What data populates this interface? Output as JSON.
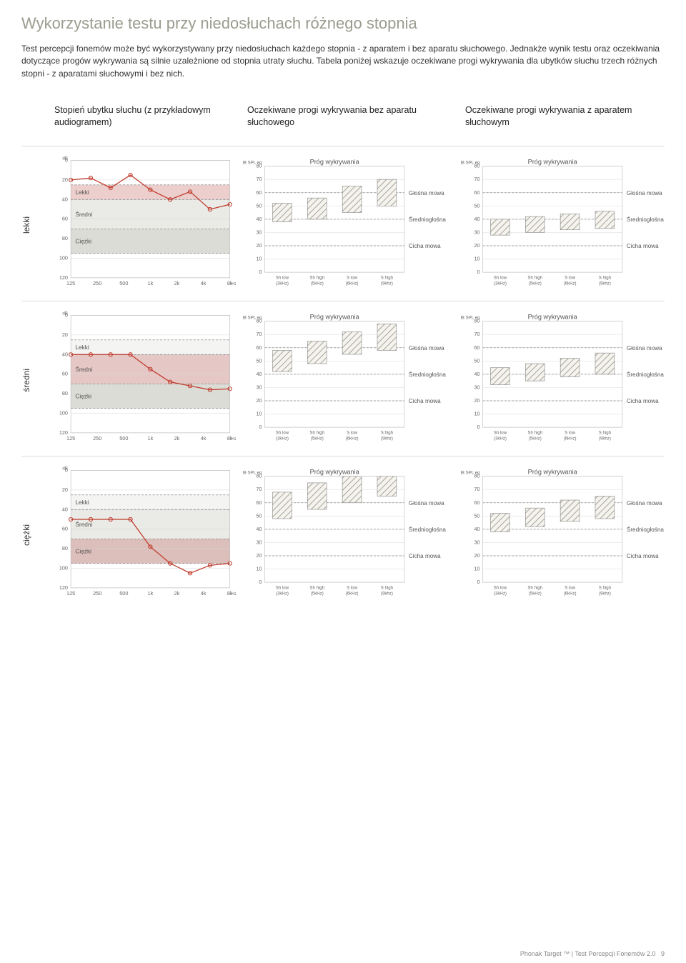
{
  "page_title": "Wykorzystanie testu przy niedosłuchach różnego stopnia",
  "intro_text": "Test percepcji fonemów może być wykorzystywany przy niedosłuchach każdego stopnia - z aparatem i bez aparatu słuchowego. Jednakże wynik testu oraz oczekiwania dotyczące progów wykrywania są silnie uzależnione od stopnia utraty słuchu. Tabela poniżej wskazuje oczekiwane progi wykrywania dla ubytków słuchu trzech różnych stopni - z aparatami słuchowymi i bez nich.",
  "headers": {
    "col1": "Stopień ubytku słuchu\n(z przykładowym audiogramem)",
    "col2": "Oczekiwane progi wykrywania bez aparatu słuchowego",
    "col3": "Oczekiwane progi wykrywania z aparatem słuchowym"
  },
  "row_labels": [
    "lekki",
    "średni",
    "ciężki"
  ],
  "audiogram": {
    "y_ticks": [
      0,
      20,
      40,
      60,
      80,
      100,
      120
    ],
    "x_labels": [
      "125",
      "250",
      "500",
      "1k",
      "2k",
      "4k",
      "8k"
    ],
    "x_unit": "Hz",
    "y_unit": "dB",
    "bands": [
      "Lekki",
      "Średni",
      "Ciężki"
    ],
    "band_ranges": [
      [
        25,
        40
      ],
      [
        40,
        70
      ],
      [
        70,
        95
      ]
    ]
  },
  "audiogram_data": {
    "lekki": {
      "points": [
        20,
        18,
        28,
        15,
        30,
        40,
        32,
        50,
        45
      ],
      "highlight_band": "lekki"
    },
    "sredni": {
      "points": [
        40,
        40,
        40,
        40,
        55,
        68,
        72,
        76,
        75
      ],
      "highlight_band": "sredni"
    },
    "ciezki": {
      "points": [
        50,
        50,
        50,
        50,
        78,
        95,
        105,
        97,
        95
      ],
      "highlight_band": "ciezki"
    }
  },
  "barchart": {
    "title": "Próg wykrywania",
    "y_unit": "dB SPL eq",
    "y_ticks": [
      0,
      10,
      20,
      30,
      40,
      50,
      60,
      70,
      80
    ],
    "x_labels": [
      "Sh low\n(3kHz)",
      "Sh high\n(5kHz)",
      "S low\n(6kHz)",
      "S high\n(9khz)"
    ],
    "ref_lines": [
      {
        "y": 60,
        "label": "Głośna mowa"
      },
      {
        "y": 40,
        "label": "Średniogłośna"
      },
      {
        "y": 20,
        "label": "Cicha mowa"
      }
    ]
  },
  "bars_unaided": {
    "lekki": [
      [
        38,
        52
      ],
      [
        40,
        56
      ],
      [
        45,
        65
      ],
      [
        50,
        70
      ]
    ],
    "sredni": [
      [
        42,
        58
      ],
      [
        48,
        65
      ],
      [
        55,
        72
      ],
      [
        58,
        78
      ]
    ],
    "ciezki": [
      [
        48,
        68
      ],
      [
        55,
        75
      ],
      [
        60,
        80
      ],
      [
        65,
        80
      ]
    ]
  },
  "bars_aided": {
    "lekki": [
      [
        28,
        40
      ],
      [
        30,
        42
      ],
      [
        32,
        44
      ],
      [
        33,
        46
      ]
    ],
    "sredni": [
      [
        32,
        45
      ],
      [
        35,
        48
      ],
      [
        38,
        52
      ],
      [
        40,
        56
      ]
    ],
    "ciezki": [
      [
        38,
        52
      ],
      [
        42,
        56
      ],
      [
        46,
        62
      ],
      [
        48,
        65
      ]
    ]
  },
  "colors": {
    "aud_line": "#c0392b",
    "band_lekki": "#f4f4f2",
    "band_sredni": "#eaeae6",
    "band_ciezki": "#dcdcd6",
    "highlight": "#d88",
    "hatch": "#a8a49a",
    "grid": "#d8d8d8"
  },
  "footer": {
    "brand": "Phonak Target ™",
    "doc": "Test Percepcji Fonemów 2.0",
    "page": "9"
  }
}
